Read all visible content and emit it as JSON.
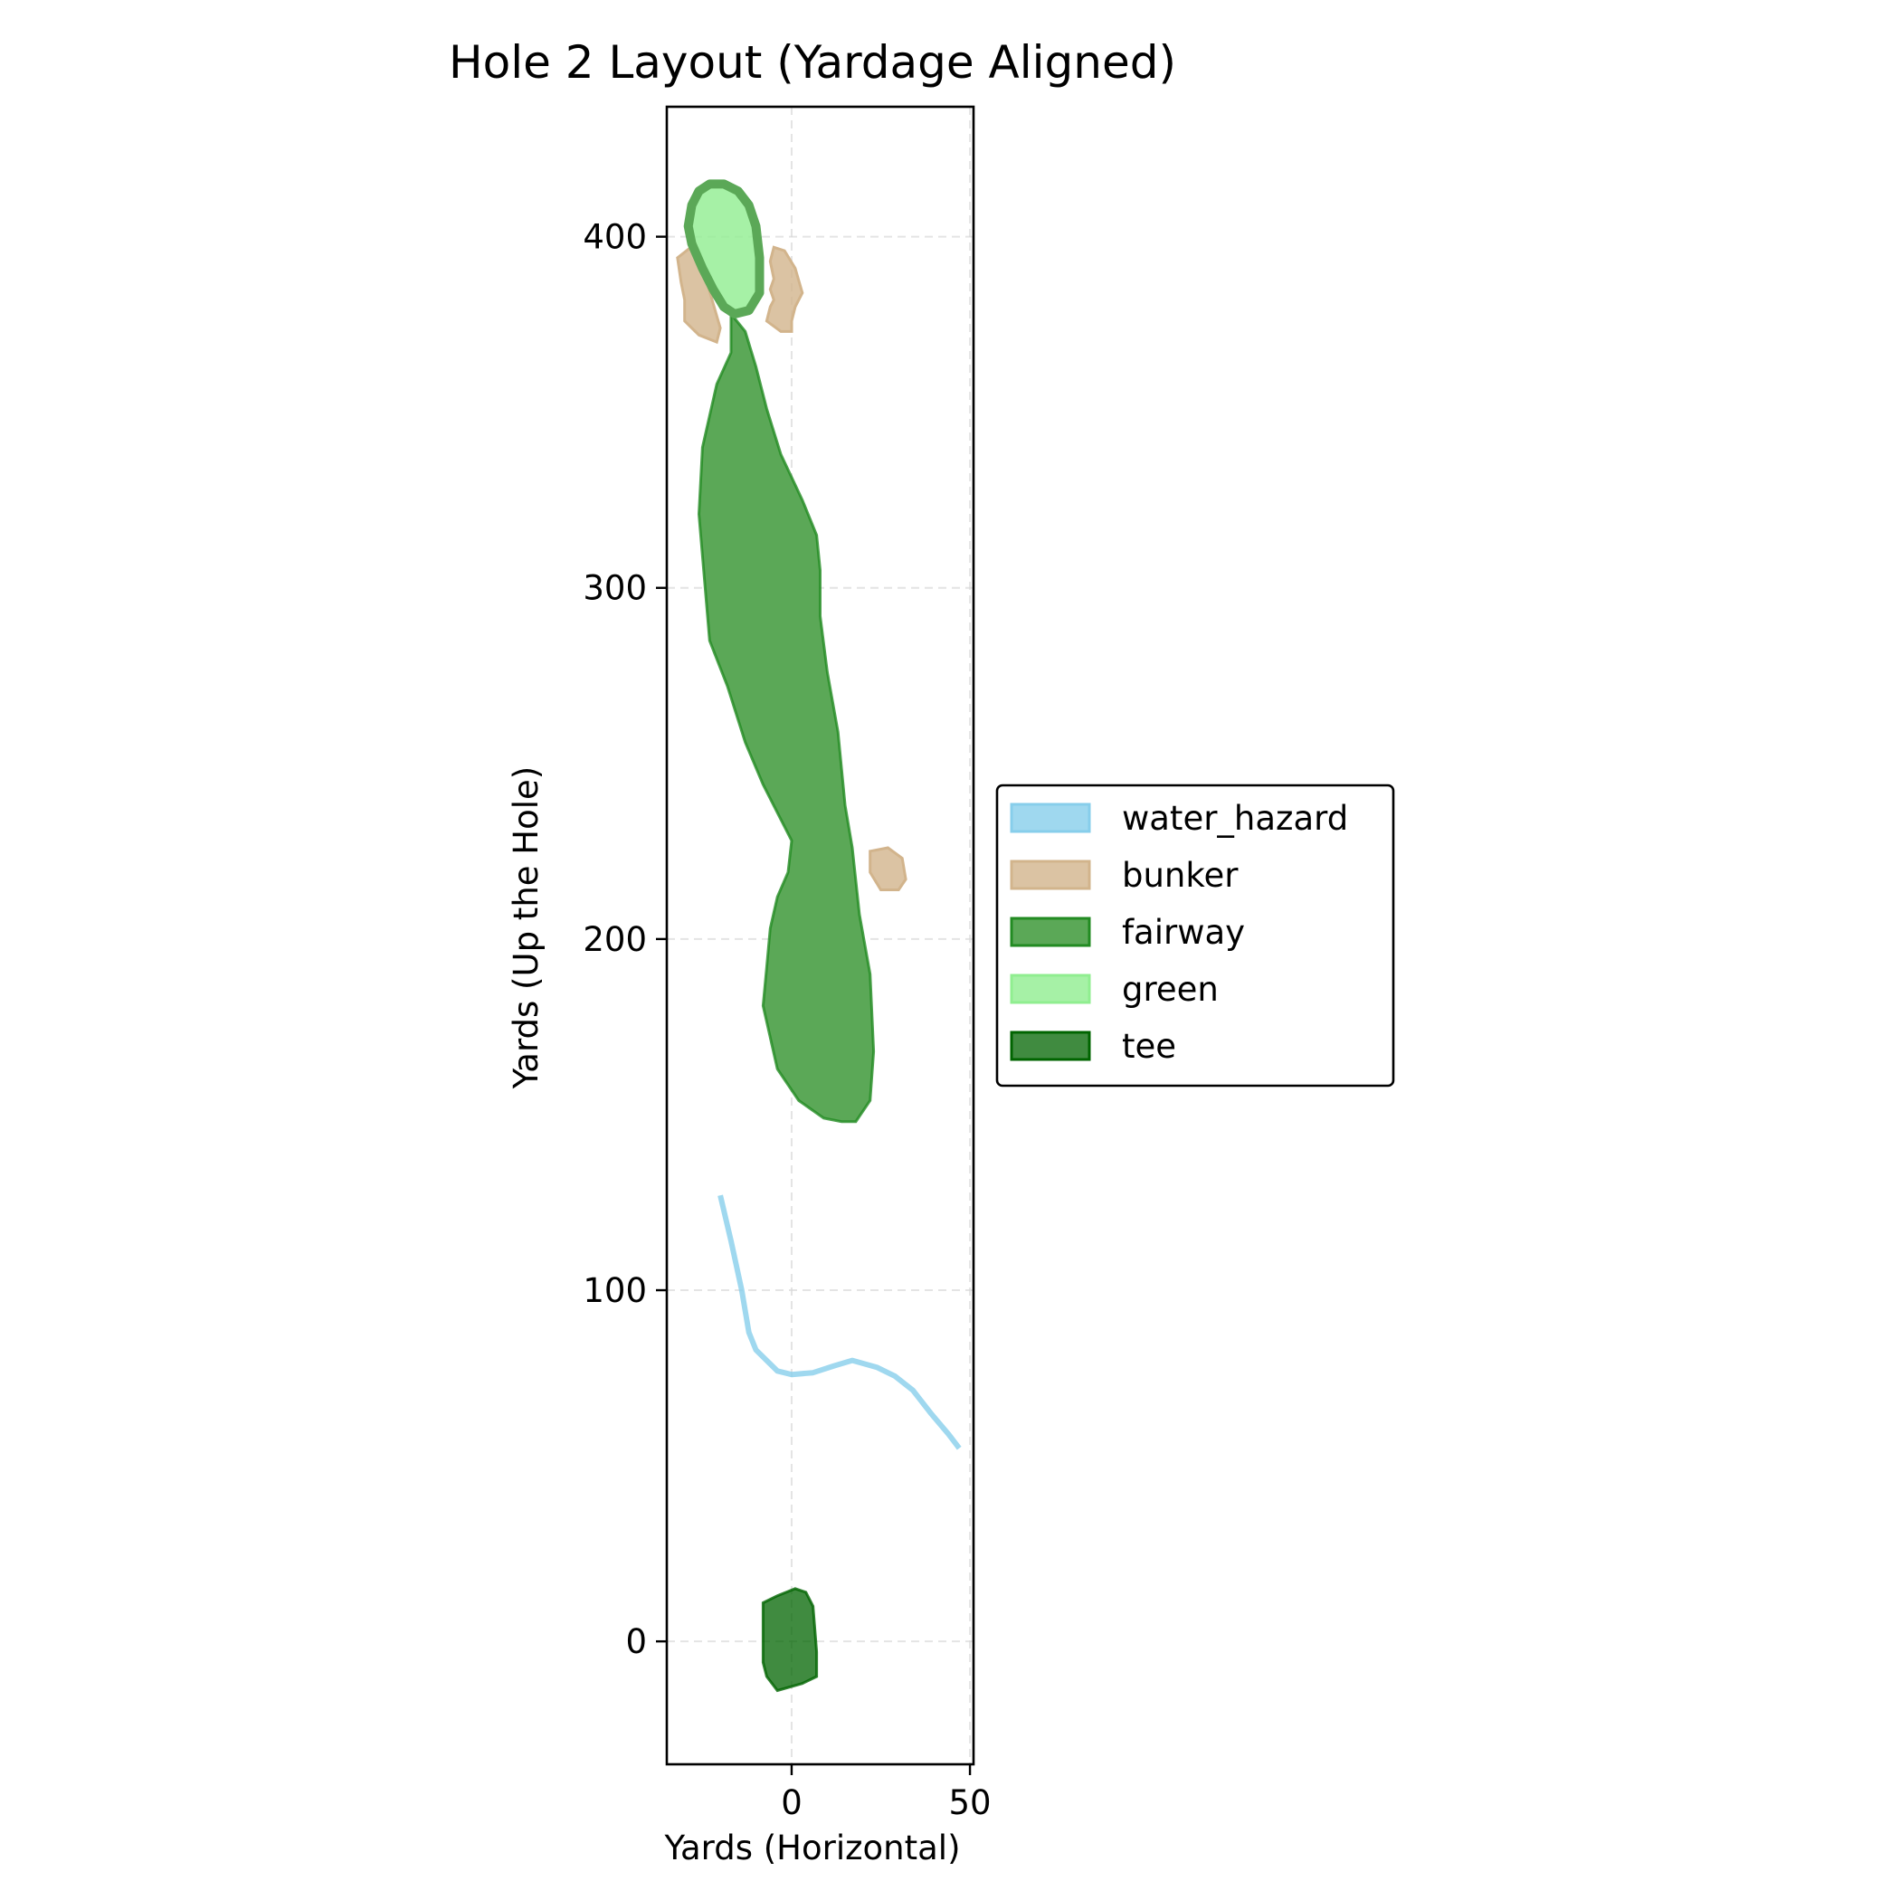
{
  "chart_data": {
    "type": "area",
    "title": "Hole 2 Layout (Yardage Aligned)",
    "xlabel": "Yards (Horizontal)",
    "ylabel": "Yards (Up the Hole)",
    "xlim": [
      -35,
      51
    ],
    "ylim": [
      -35,
      437
    ],
    "x_ticks": [
      0,
      50
    ],
    "y_ticks": [
      0,
      100,
      200,
      300,
      400
    ],
    "grid": true,
    "aspect": "equal",
    "legend_position": "center-right, outside plot",
    "legend": [
      "water_hazard",
      "bunker",
      "fairway",
      "green",
      "tee"
    ],
    "colors": {
      "water_hazard": "#87ceeb",
      "bunker": "#d2b48c",
      "fairway": "#228b22",
      "fairway_fill": "#5ba857",
      "green": "#90ee90",
      "tee": "#006400"
    },
    "features": {
      "water_hazard": {
        "shape": "line",
        "points": [
          [
            -20,
            127
          ],
          [
            -17,
            114
          ],
          [
            -14,
            100
          ],
          [
            -12,
            88
          ],
          [
            -10,
            83
          ],
          [
            -4,
            77
          ],
          [
            0,
            76
          ],
          [
            6,
            76.5
          ],
          [
            12,
            78.5
          ],
          [
            17,
            80
          ],
          [
            24,
            78
          ],
          [
            29,
            75.5
          ],
          [
            34,
            71.5
          ],
          [
            39,
            65
          ],
          [
            44,
            59
          ],
          [
            47,
            55
          ]
        ]
      },
      "bunker": {
        "shape": "polygon",
        "polygons": [
          [
            [
              -32,
              394
            ],
            [
              -27,
              398
            ],
            [
              -24,
              388
            ],
            [
              -22,
              381
            ],
            [
              -20,
              374
            ],
            [
              -21,
              370
            ],
            [
              -26,
              372
            ],
            [
              -30,
              376
            ],
            [
              -30,
              382
            ],
            [
              -31,
              387
            ]
          ],
          [
            [
              -5,
              397
            ],
            [
              -2,
              396
            ],
            [
              1,
              391
            ],
            [
              3,
              384
            ],
            [
              1,
              380
            ],
            [
              0,
              376
            ],
            [
              0,
              373
            ],
            [
              -3,
              373
            ],
            [
              -7,
              376
            ],
            [
              -6,
              380
            ],
            [
              -5,
              382
            ],
            [
              -6,
              385
            ],
            [
              -5,
              388
            ],
            [
              -6,
              393
            ]
          ],
          [
            [
              22,
              225
            ],
            [
              27,
              226
            ],
            [
              31,
              223
            ],
            [
              32,
              217
            ],
            [
              30,
              214
            ],
            [
              25,
              214
            ],
            [
              22,
              219
            ]
          ]
        ]
      },
      "fairway": {
        "shape": "polygon",
        "points": [
          [
            -17,
            378
          ],
          [
            -13,
            373
          ],
          [
            -10,
            363
          ],
          [
            -7,
            351
          ],
          [
            -3,
            338
          ],
          [
            3,
            325
          ],
          [
            7,
            315
          ],
          [
            8,
            305
          ],
          [
            8,
            292
          ],
          [
            10,
            276
          ],
          [
            13,
            259
          ],
          [
            15,
            238
          ],
          [
            17,
            226
          ],
          [
            19,
            207
          ],
          [
            22,
            190
          ],
          [
            23,
            168
          ],
          [
            22,
            154
          ],
          [
            18,
            148
          ],
          [
            14,
            148
          ],
          [
            9,
            149
          ],
          [
            2,
            154
          ],
          [
            -4,
            163
          ],
          [
            -8,
            181
          ],
          [
            -7,
            192
          ],
          [
            -6,
            203
          ],
          [
            -4,
            212
          ],
          [
            -1,
            219
          ],
          [
            0,
            228
          ],
          [
            -4,
            236
          ],
          [
            -8,
            244
          ],
          [
            -13,
            256
          ],
          [
            -18,
            272
          ],
          [
            -23,
            285
          ],
          [
            -26,
            321
          ],
          [
            -25,
            340
          ],
          [
            -21,
            358
          ],
          [
            -17,
            367
          ]
        ]
      },
      "green": {
        "shape": "polygon",
        "points": [
          [
            -28,
            409
          ],
          [
            -26,
            413
          ],
          [
            -23,
            415
          ],
          [
            -19,
            415
          ],
          [
            -15,
            413
          ],
          [
            -12,
            409
          ],
          [
            -10,
            403
          ],
          [
            -9,
            394
          ],
          [
            -9,
            384
          ],
          [
            -12,
            379
          ],
          [
            -16,
            378
          ],
          [
            -19,
            380
          ],
          [
            -22,
            385
          ],
          [
            -25,
            391
          ],
          [
            -28,
            398
          ],
          [
            -29,
            403
          ]
        ]
      },
      "tee": {
        "shape": "polygon",
        "points": [
          [
            -8,
            11
          ],
          [
            -4,
            13
          ],
          [
            1,
            15
          ],
          [
            4,
            14
          ],
          [
            6,
            10
          ],
          [
            7,
            -3
          ],
          [
            7,
            -10
          ],
          [
            3,
            -12
          ],
          [
            -4,
            -14
          ],
          [
            -7,
            -10
          ],
          [
            -8,
            -6
          ],
          [
            -8,
            -2
          ]
        ]
      }
    }
  }
}
